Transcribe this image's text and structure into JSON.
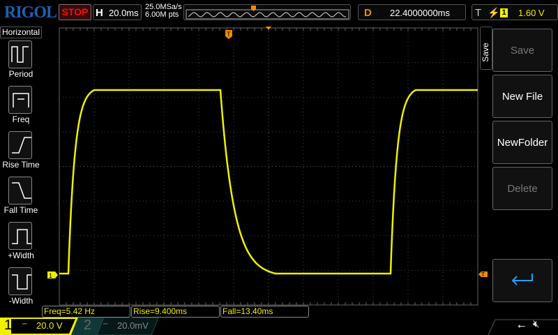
{
  "brand": "RIGOL",
  "run_state": "STOP",
  "horizontal": {
    "label": "H",
    "timebase": "20.0ms",
    "sample_rate": "25.0MSa/s",
    "memory_depth": "6.00M pts"
  },
  "delay": {
    "label": "D",
    "value": "22.4000000ms"
  },
  "trigger": {
    "label": "T",
    "edge": "rising-edge-icon",
    "source": "1",
    "level": "1.60 V"
  },
  "left_menu": {
    "title": "Horizontal",
    "items": [
      {
        "label": "Period"
      },
      {
        "label": "Freq"
      },
      {
        "label": "Rise Time"
      },
      {
        "label": "Fall Time"
      },
      {
        "label": "+Width"
      },
      {
        "label": "-Width"
      }
    ]
  },
  "right_menu": {
    "title": "Save",
    "items": [
      {
        "label": "Save",
        "enabled": false
      },
      {
        "label": "New File",
        "enabled": true
      },
      {
        "label": "NewFolder",
        "enabled": true
      },
      {
        "label": "Delete",
        "enabled": false
      },
      {
        "label": "enter-icon",
        "enabled": true
      }
    ]
  },
  "measurements": [
    {
      "text": "Freq=5.42 Hz"
    },
    {
      "text": "Rise=9.400ms"
    },
    {
      "text": "Fall=13.40ms"
    }
  ],
  "channels": [
    {
      "number": "1",
      "scale": "20.0 V",
      "active": true,
      "color": "#f0f000"
    },
    {
      "number": "2",
      "scale": "20.0mV",
      "active": false,
      "color": "#1fa0a0"
    }
  ],
  "markers": {
    "ch1": "1",
    "trigger": "T"
  },
  "colors": {
    "ch1": "#f0f000",
    "trigger": "#f08c00",
    "stop": "#f01010"
  }
}
